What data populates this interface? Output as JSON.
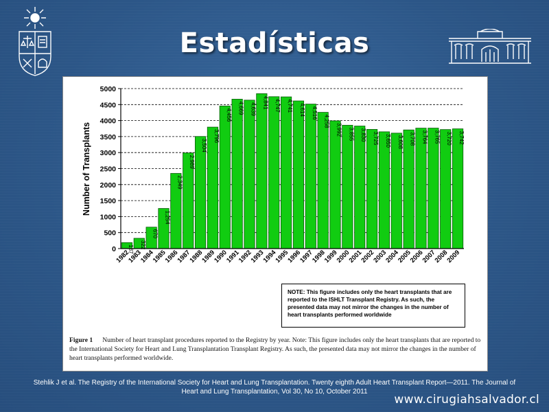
{
  "slide": {
    "title": "Estadísticas",
    "citation_line1": "Stehlik J et al. The Registry of the International Society for Heart and Lung Transplantation. Twenty eighth Adult Heart Transplant Report—2011. The Journal of",
    "citation_line2": "Heart and Lung Transplantation, Vol 30, No 10, October 2011",
    "url": "www.cirugiahsalvador.cl"
  },
  "figure": {
    "note": "NOTE: This figure includes only the heart transplants that are reported to the ISHLT Transplant Registry. As such, the presented data may not mirror the changes in the number of heart transplants performed worldwide",
    "caption_label": "Figure 1",
    "caption_text": "Number of heart transplant procedures reported to the Registry by year. Note: This figure includes only the heart transplants that are reported to the International Society for Heart and Lung Transplantation Transplant Registry. As such, the presented data may not mirror the changes in the number of heart transplants performed worldwide."
  },
  "chart_data": {
    "type": "bar",
    "ylabel": "Number of Transplants",
    "xlabel": "",
    "ylim": [
      0,
      5000
    ],
    "yticks": [
      0,
      500,
      1000,
      1500,
      2000,
      2500,
      3000,
      3500,
      4000,
      4500,
      5000
    ],
    "categories": [
      "1982",
      "1983",
      "1984",
      "1985",
      "1986",
      "1987",
      "1988",
      "1989",
      "1990",
      "1991",
      "1992",
      "1993",
      "1994",
      "1995",
      "1996",
      "1997",
      "1998",
      "1999",
      "2000",
      "2001",
      "2002",
      "2003",
      "2004",
      "2005",
      "2006",
      "2007",
      "2008",
      "2009"
    ],
    "values": [
      187,
      322,
      670,
      1254,
      2349,
      2989,
      3504,
      3796,
      4456,
      4669,
      4639,
      4841,
      4747,
      4741,
      4614,
      4516,
      4258,
      3992,
      3855,
      3830,
      3725,
      3650,
      3608,
      3708,
      3764,
      3765,
      3720,
      3742
    ],
    "data_labels": [
      "187",
      "322",
      "670",
      "1,254",
      "2,349",
      "2,989",
      "3,504",
      "3,796",
      "4,456",
      "4,669",
      "4,639",
      "4,841",
      "4,747",
      "4,741",
      "4,614",
      "4,516",
      "4,258",
      "3,992",
      "3,855",
      "3,830",
      "3,725",
      "3,650",
      "3,608",
      "3,708",
      "3,764",
      "3,765",
      "3,720",
      "3,742"
    ],
    "grid": "horizontal dashed",
    "bar_color": "#11cc11"
  }
}
